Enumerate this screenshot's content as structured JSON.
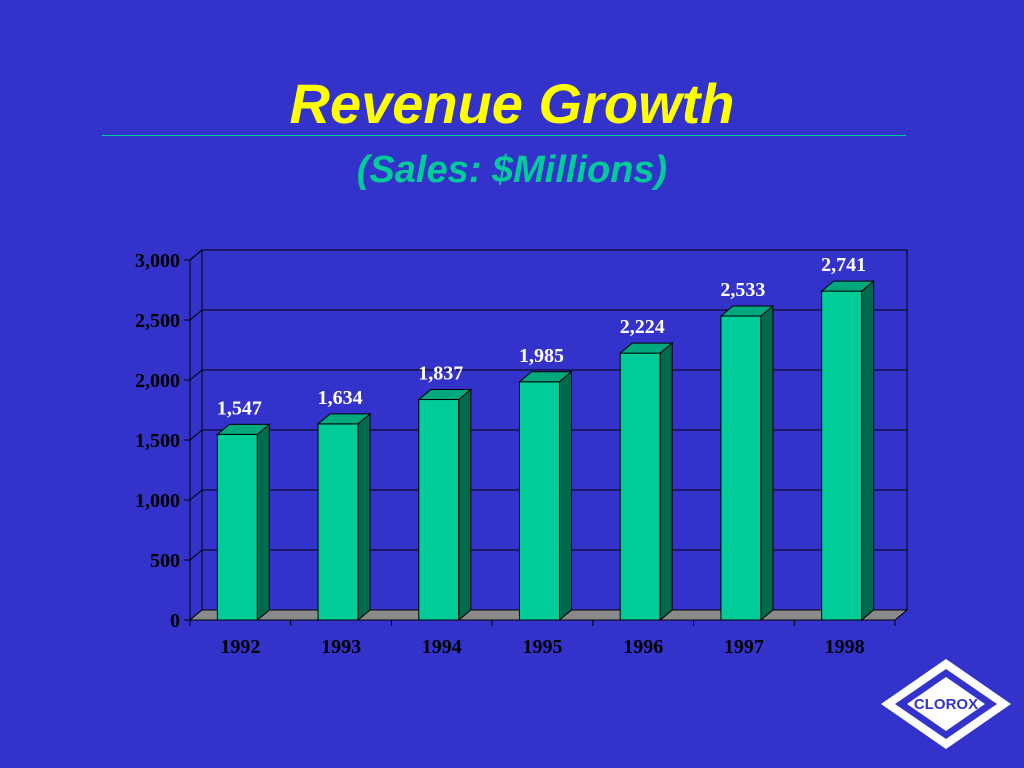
{
  "slide": {
    "title": "Revenue Growth",
    "subtitle": "(Sales:  $Millions)",
    "logo_text": "CLOROX"
  },
  "colors": {
    "background": "#3333cc",
    "title": "#ffff00",
    "subtitle": "#00cc99",
    "rule": "#00cc99",
    "bar_front": "#00cc99",
    "bar_side": "#006a4e",
    "bar_top": "#00a87e",
    "floor": "#8a8a8a",
    "label_text": "#ffffff",
    "axis_text": "#000000"
  },
  "chart_data": {
    "type": "bar",
    "title": "",
    "xlabel": "",
    "ylabel": "",
    "categories": [
      "1992",
      "1993",
      "1994",
      "1995",
      "1996",
      "1997",
      "1998"
    ],
    "values": [
      1547,
      1634,
      1837,
      1985,
      2224,
      2533,
      2741
    ],
    "value_labels": [
      "1,547",
      "1,634",
      "1,837",
      "1,985",
      "2,224",
      "2,533",
      "2,741"
    ],
    "ylim": [
      0,
      3000
    ],
    "yticks": [
      0,
      500,
      1000,
      1500,
      2000,
      2500,
      3000
    ],
    "ytick_labels": [
      "0",
      "500",
      "1,000",
      "1,500",
      "2,000",
      "2,500",
      "3,000"
    ],
    "grid": true,
    "style": "3d",
    "legend": "none"
  }
}
